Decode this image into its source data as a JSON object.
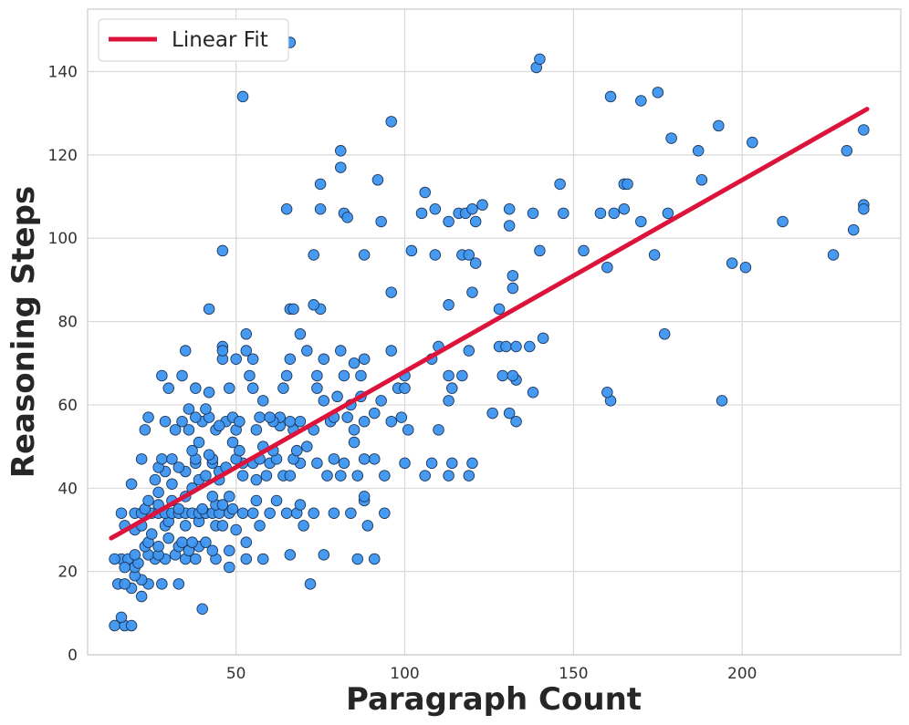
{
  "chart_data": {
    "type": "scatter",
    "xlabel": "Paragraph Count",
    "ylabel": "Reasoning Steps",
    "xlim": [
      6,
      247
    ],
    "ylim": [
      0,
      155
    ],
    "xticks": [
      50,
      100,
      150,
      200
    ],
    "yticks": [
      0,
      20,
      40,
      60,
      80,
      100,
      120,
      140
    ],
    "grid": true,
    "legend": {
      "position": "top-left",
      "entries": [
        "Linear Fit"
      ]
    },
    "colors": {
      "points": "#3d95f0",
      "point_edge": "#1c3557",
      "fit_line": "#dc143c",
      "grid": "#d9d9d9",
      "spine": "#cccccc"
    },
    "fit_line": {
      "name": "Linear Fit",
      "x": [
        13,
        237
      ],
      "y": [
        28,
        131
      ]
    },
    "points": [
      [
        14,
        7
      ],
      [
        17,
        7
      ],
      [
        19,
        7
      ],
      [
        16,
        9
      ],
      [
        40,
        11
      ],
      [
        22,
        14
      ],
      [
        19,
        16
      ],
      [
        24,
        17
      ],
      [
        28,
        17
      ],
      [
        33,
        17
      ],
      [
        72,
        17
      ],
      [
        15,
        17
      ],
      [
        17,
        17
      ],
      [
        22,
        18
      ],
      [
        20,
        19
      ],
      [
        20,
        21
      ],
      [
        16,
        23
      ],
      [
        18,
        23
      ],
      [
        14,
        23
      ],
      [
        21,
        22
      ],
      [
        17,
        21
      ],
      [
        26,
        23
      ],
      [
        29,
        23
      ],
      [
        35,
        23
      ],
      [
        38,
        23
      ],
      [
        44,
        23
      ],
      [
        53,
        23
      ],
      [
        58,
        23
      ],
      [
        86,
        23
      ],
      [
        91,
        23
      ],
      [
        48,
        21
      ],
      [
        24,
        24
      ],
      [
        27,
        24
      ],
      [
        32,
        24
      ],
      [
        36,
        25
      ],
      [
        43,
        25
      ],
      [
        48,
        25
      ],
      [
        66,
        24
      ],
      [
        76,
        24
      ],
      [
        20,
        24
      ],
      [
        23,
        26
      ],
      [
        27,
        26
      ],
      [
        33,
        26
      ],
      [
        39,
        26
      ],
      [
        24,
        27
      ],
      [
        34,
        27
      ],
      [
        41,
        27
      ],
      [
        30,
        28
      ],
      [
        37,
        27
      ],
      [
        53,
        27
      ],
      [
        20,
        30
      ],
      [
        25,
        29
      ],
      [
        29,
        31
      ],
      [
        35,
        31
      ],
      [
        22,
        31
      ],
      [
        44,
        31
      ],
      [
        46,
        31
      ],
      [
        50,
        30
      ],
      [
        70,
        31
      ],
      [
        89,
        31
      ],
      [
        17,
        31
      ],
      [
        57,
        31
      ],
      [
        30,
        32
      ],
      [
        39,
        32
      ],
      [
        20,
        34
      ],
      [
        22,
        34
      ],
      [
        25,
        34
      ],
      [
        27,
        34
      ],
      [
        29,
        34
      ],
      [
        31,
        34
      ],
      [
        33,
        34
      ],
      [
        35,
        34
      ],
      [
        37,
        34
      ],
      [
        39,
        34
      ],
      [
        41,
        34
      ],
      [
        43,
        34
      ],
      [
        45,
        34
      ],
      [
        48,
        34
      ],
      [
        52,
        34
      ],
      [
        55,
        34
      ],
      [
        60,
        34
      ],
      [
        65,
        34
      ],
      [
        68,
        34
      ],
      [
        73,
        34
      ],
      [
        79,
        34
      ],
      [
        84,
        34
      ],
      [
        94,
        34
      ],
      [
        16,
        34
      ],
      [
        23,
        35
      ],
      [
        27,
        36
      ],
      [
        33,
        35
      ],
      [
        40,
        35
      ],
      [
        44,
        36
      ],
      [
        46,
        36
      ],
      [
        49,
        35
      ],
      [
        31,
        37
      ],
      [
        35,
        38
      ],
      [
        24,
        37
      ],
      [
        43,
        38
      ],
      [
        48,
        38
      ],
      [
        56,
        37
      ],
      [
        62,
        37
      ],
      [
        69,
        36
      ],
      [
        88,
        37
      ],
      [
        88,
        38
      ],
      [
        27,
        39
      ],
      [
        37,
        40
      ],
      [
        31,
        41
      ],
      [
        19,
        41
      ],
      [
        26,
        42
      ],
      [
        39,
        42
      ],
      [
        45,
        42
      ],
      [
        56,
        42
      ],
      [
        29,
        44
      ],
      [
        35,
        44
      ],
      [
        41,
        43
      ],
      [
        45,
        44
      ],
      [
        52,
        43
      ],
      [
        59,
        43
      ],
      [
        64,
        43
      ],
      [
        66,
        43
      ],
      [
        77,
        43
      ],
      [
        81,
        43
      ],
      [
        86,
        43
      ],
      [
        94,
        43
      ],
      [
        106,
        43
      ],
      [
        113,
        43
      ],
      [
        119,
        43
      ],
      [
        27,
        45
      ],
      [
        33,
        45
      ],
      [
        38,
        46
      ],
      [
        43,
        46
      ],
      [
        47,
        45
      ],
      [
        52,
        46
      ],
      [
        55,
        46
      ],
      [
        60,
        46
      ],
      [
        69,
        46
      ],
      [
        74,
        46
      ],
      [
        82,
        46
      ],
      [
        91,
        47
      ],
      [
        100,
        46
      ],
      [
        108,
        46
      ],
      [
        114,
        46
      ],
      [
        120,
        46
      ],
      [
        22,
        47
      ],
      [
        28,
        47
      ],
      [
        31,
        47
      ],
      [
        38,
        47
      ],
      [
        43,
        47
      ],
      [
        50,
        47
      ],
      [
        57,
        47
      ],
      [
        62,
        47
      ],
      [
        67,
        47
      ],
      [
        79,
        47
      ],
      [
        88,
        47
      ],
      [
        37,
        49
      ],
      [
        42,
        48
      ],
      [
        51,
        49
      ],
      [
        61,
        49
      ],
      [
        68,
        49
      ],
      [
        39,
        51
      ],
      [
        49,
        51
      ],
      [
        58,
        50
      ],
      [
        71,
        50
      ],
      [
        85,
        51
      ],
      [
        23,
        54
      ],
      [
        32,
        54
      ],
      [
        36,
        54
      ],
      [
        44,
        54
      ],
      [
        50,
        54
      ],
      [
        56,
        54
      ],
      [
        63,
        55
      ],
      [
        67,
        54
      ],
      [
        73,
        54
      ],
      [
        85,
        54
      ],
      [
        101,
        54
      ],
      [
        110,
        54
      ],
      [
        29,
        56
      ],
      [
        34,
        56
      ],
      [
        40,
        56
      ],
      [
        47,
        56
      ],
      [
        49,
        57
      ],
      [
        57,
        57
      ],
      [
        63,
        57
      ],
      [
        66,
        56
      ],
      [
        78,
        56
      ],
      [
        88,
        56
      ],
      [
        96,
        56
      ],
      [
        99,
        57
      ],
      [
        126,
        58
      ],
      [
        131,
        58
      ],
      [
        133,
        56
      ],
      [
        61,
        56
      ],
      [
        69,
        56
      ],
      [
        24,
        57
      ],
      [
        38,
        57
      ],
      [
        42,
        57
      ],
      [
        45,
        55
      ],
      [
        51,
        56
      ],
      [
        36,
        59
      ],
      [
        41,
        59
      ],
      [
        60,
        57
      ],
      [
        79,
        57
      ],
      [
        83,
        57
      ],
      [
        93,
        61
      ],
      [
        113,
        61
      ],
      [
        161,
        61
      ],
      [
        194,
        61
      ],
      [
        30,
        64
      ],
      [
        38,
        64
      ],
      [
        48,
        64
      ],
      [
        55,
        64
      ],
      [
        64,
        64
      ],
      [
        74,
        64
      ],
      [
        80,
        62
      ],
      [
        87,
        62
      ],
      [
        98,
        64
      ],
      [
        100,
        64
      ],
      [
        114,
        64
      ],
      [
        138,
        63
      ],
      [
        160,
        63
      ],
      [
        42,
        63
      ],
      [
        58,
        61
      ],
      [
        76,
        61
      ],
      [
        84,
        60
      ],
      [
        91,
        58
      ],
      [
        28,
        67
      ],
      [
        34,
        67
      ],
      [
        54,
        67
      ],
      [
        65,
        67
      ],
      [
        74,
        67
      ],
      [
        82,
        67
      ],
      [
        87,
        67
      ],
      [
        100,
        67
      ],
      [
        113,
        67
      ],
      [
        117,
        67
      ],
      [
        129,
        67
      ],
      [
        133,
        66
      ],
      [
        132,
        67
      ],
      [
        46,
        71
      ],
      [
        50,
        71
      ],
      [
        55,
        71
      ],
      [
        66,
        71
      ],
      [
        76,
        71
      ],
      [
        88,
        71
      ],
      [
        108,
        71
      ],
      [
        119,
        73
      ],
      [
        128,
        74
      ],
      [
        130,
        74
      ],
      [
        133,
        74
      ],
      [
        137,
        74
      ],
      [
        141,
        76
      ],
      [
        35,
        73
      ],
      [
        46,
        74
      ],
      [
        53,
        73
      ],
      [
        71,
        73
      ],
      [
        81,
        73
      ],
      [
        96,
        73
      ],
      [
        110,
        74
      ],
      [
        46,
        73
      ],
      [
        85,
        70
      ],
      [
        42,
        83
      ],
      [
        66,
        83
      ],
      [
        67,
        83
      ],
      [
        75,
        83
      ],
      [
        73,
        84
      ],
      [
        113,
        84
      ],
      [
        128,
        83
      ],
      [
        69,
        77
      ],
      [
        53,
        77
      ],
      [
        96,
        87
      ],
      [
        120,
        87
      ],
      [
        132,
        88
      ],
      [
        132,
        91
      ],
      [
        177,
        77
      ],
      [
        46,
        97
      ],
      [
        73,
        96
      ],
      [
        88,
        96
      ],
      [
        102,
        97
      ],
      [
        109,
        96
      ],
      [
        117,
        96
      ],
      [
        119,
        96
      ],
      [
        121,
        94
      ],
      [
        140,
        97
      ],
      [
        153,
        97
      ],
      [
        174,
        96
      ],
      [
        197,
        94
      ],
      [
        201,
        93
      ],
      [
        160,
        93
      ],
      [
        227,
        96
      ],
      [
        65,
        107
      ],
      [
        75,
        107
      ],
      [
        82,
        106
      ],
      [
        83,
        105
      ],
      [
        93,
        104
      ],
      [
        105,
        106
      ],
      [
        106,
        111
      ],
      [
        109,
        107
      ],
      [
        113,
        104
      ],
      [
        116,
        106
      ],
      [
        118,
        106
      ],
      [
        120,
        107
      ],
      [
        121,
        104
      ],
      [
        123,
        108
      ],
      [
        131,
        103
      ],
      [
        131,
        107
      ],
      [
        138,
        106
      ],
      [
        146,
        113
      ],
      [
        147,
        106
      ],
      [
        158,
        106
      ],
      [
        162,
        106
      ],
      [
        165,
        107
      ],
      [
        170,
        104
      ],
      [
        178,
        106
      ],
      [
        212,
        104
      ],
      [
        165,
        113
      ],
      [
        166,
        113
      ],
      [
        188,
        114
      ],
      [
        92,
        114
      ],
      [
        75,
        113
      ],
      [
        81,
        117
      ],
      [
        81,
        121
      ],
      [
        179,
        124
      ],
      [
        187,
        121
      ],
      [
        203,
        123
      ],
      [
        231,
        121
      ],
      [
        236,
        126
      ],
      [
        193,
        127
      ],
      [
        236,
        108
      ],
      [
        236,
        107
      ],
      [
        233,
        102
      ],
      [
        96,
        128
      ],
      [
        52,
        134
      ],
      [
        161,
        134
      ],
      [
        170,
        133
      ],
      [
        175,
        135
      ],
      [
        139,
        141
      ],
      [
        140,
        143
      ],
      [
        66,
        147
      ]
    ]
  }
}
